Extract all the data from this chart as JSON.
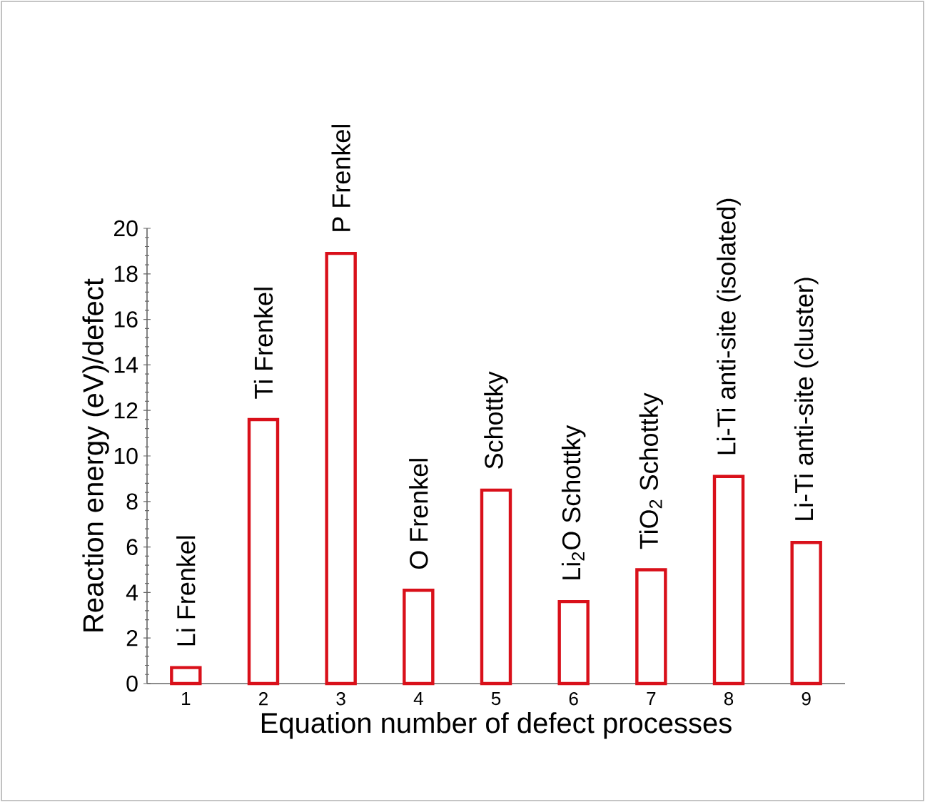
{
  "chart_data": {
    "type": "bar",
    "xlabel": "Equation number of defect processes",
    "ylabel": "Reaction energy (eV)/defect",
    "categories": [
      "1",
      "2",
      "3",
      "4",
      "5",
      "6",
      "7",
      "8",
      "9"
    ],
    "values": [
      0.7,
      11.6,
      18.9,
      4.1,
      8.5,
      3.6,
      5.0,
      9.1,
      6.2
    ],
    "color": "#d9101a",
    "ylim": [
      0,
      20
    ],
    "yticks": [
      0,
      2,
      4,
      6,
      8,
      10,
      12,
      14,
      16,
      18,
      20
    ],
    "annotations": [
      {
        "text": "Li Frenkel",
        "x": "1",
        "y": 0.7
      },
      {
        "text": "Ti Frenkel",
        "x": "2",
        "y": 11.6
      },
      {
        "text": "P Frenkel",
        "x": "3",
        "y": 18.9
      },
      {
        "text": "O Frenkel",
        "x": "4",
        "y": 4.1
      },
      {
        "text": "Schottky",
        "x": "5",
        "y": 8.5
      },
      {
        "text": "Li$_{2}$O Schottky",
        "x": "6",
        "y": 3.6
      },
      {
        "text": "TiO$_{2}$ Schottky",
        "x": "7",
        "y": 5.0
      },
      {
        "text": "Li-Ti anti-site (isolated)",
        "x": "8",
        "y": 9.1
      },
      {
        "text": "Li-Ti anti-site (cluster)",
        "x": "9",
        "y": 6.2
      }
    ]
  }
}
